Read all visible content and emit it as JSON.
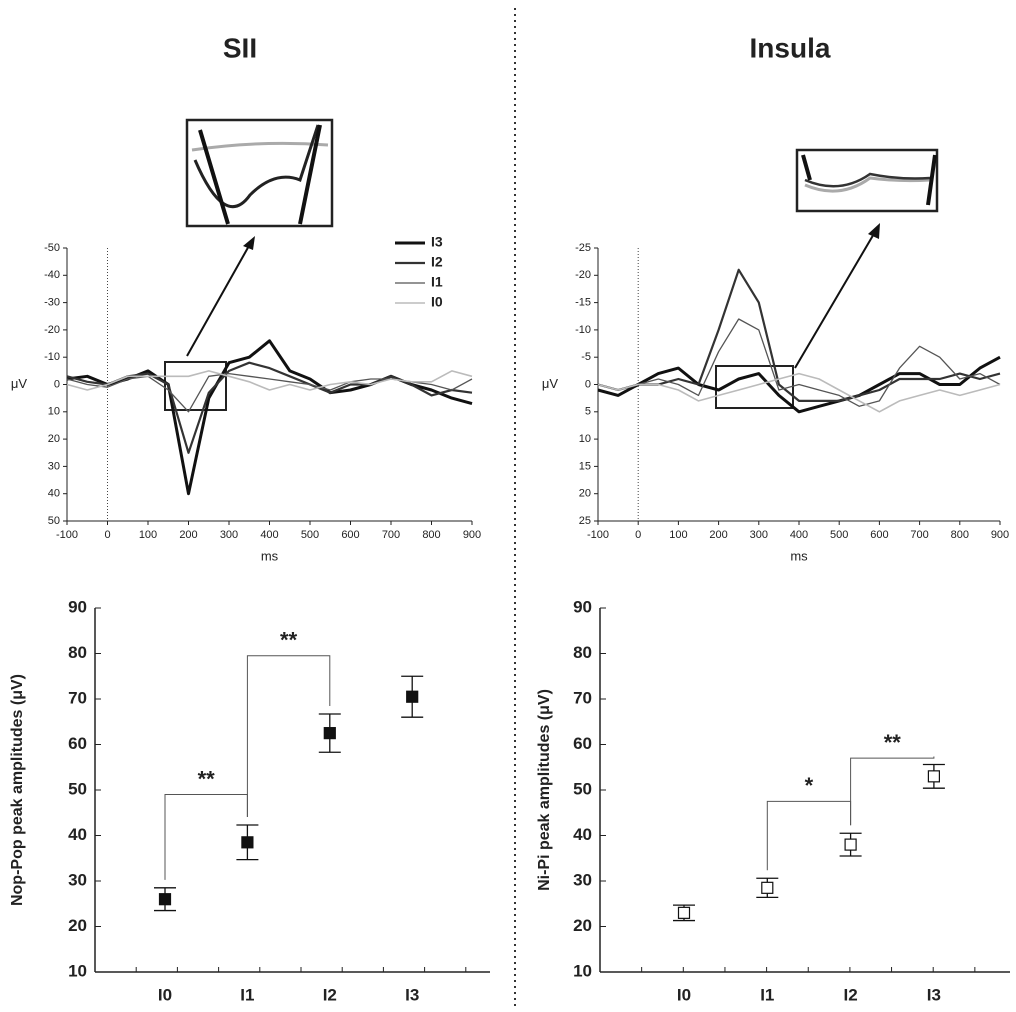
{
  "chart_data": [
    {
      "type": "line",
      "title": "SII",
      "xlabel": "ms",
      "ylabel": "μV",
      "x": [
        -100,
        -50,
        0,
        50,
        100,
        150,
        200,
        250,
        300,
        350,
        400,
        450,
        500,
        550,
        600,
        650,
        700,
        750,
        800,
        850,
        900
      ],
      "xlim": [
        -100,
        900
      ],
      "xticks": [
        -100,
        0,
        100,
        200,
        300,
        400,
        500,
        600,
        700,
        800,
        900
      ],
      "ylim": [
        -50,
        50
      ],
      "yticks": [
        -50,
        -40,
        -30,
        -20,
        -10,
        0,
        10,
        20,
        30,
        40,
        50
      ],
      "y_inverted": true,
      "legend": "top-right",
      "series": [
        {
          "name": "I3",
          "color": "#111111",
          "line_width": 3,
          "values": [
            -2,
            -3,
            0,
            -2,
            -5,
            0,
            40,
            5,
            -8,
            -10,
            -16,
            -5,
            -2,
            3,
            2,
            0,
            -3,
            0,
            2,
            5,
            7
          ]
        },
        {
          "name": "I2",
          "color": "#333333",
          "line_width": 2.2,
          "values": [
            -3,
            -1,
            0,
            -3,
            -4,
            0,
            25,
            3,
            -5,
            -8,
            -6,
            -3,
            0,
            3,
            0,
            0,
            -3,
            0,
            4,
            2,
            3
          ]
        },
        {
          "name": "I1",
          "color": "#555555",
          "line_width": 1.3,
          "values": [
            -2,
            0,
            1,
            -2,
            -3,
            2,
            10,
            -3,
            -4,
            -3,
            -2,
            -1,
            0,
            2,
            -1,
            -2,
            -2,
            -1,
            0,
            2,
            -2
          ]
        },
        {
          "name": "I0",
          "color": "#bbbbbb",
          "line_width": 1.6,
          "values": [
            0,
            2,
            0,
            -3,
            -3,
            -3,
            -3,
            -5,
            -3,
            -1,
            2,
            0,
            2,
            0,
            -1,
            0,
            -2,
            -1,
            -1,
            -5,
            -3
          ]
        }
      ]
    },
    {
      "type": "line",
      "title": "Insula",
      "xlabel": "ms",
      "ylabel": "μV",
      "x": [
        -100,
        -50,
        0,
        50,
        100,
        150,
        200,
        250,
        300,
        350,
        400,
        450,
        500,
        550,
        600,
        650,
        700,
        750,
        800,
        850,
        900
      ],
      "xlim": [
        -100,
        900
      ],
      "xticks": [
        -100,
        0,
        100,
        200,
        300,
        400,
        500,
        600,
        700,
        800,
        900
      ],
      "ylim": [
        -25,
        25
      ],
      "yticks": [
        -25,
        -20,
        -15,
        -10,
        -5,
        0,
        5,
        10,
        15,
        20,
        25
      ],
      "y_inverted": true,
      "series": [
        {
          "name": "I3",
          "color": "#111111",
          "line_width": 3,
          "values": [
            1,
            2,
            0,
            -2,
            -3,
            0,
            1,
            -1,
            -2,
            2,
            5,
            4,
            3,
            2,
            0,
            -2,
            -2,
            0,
            0,
            -3,
            -5
          ]
        },
        {
          "name": "I2",
          "color": "#333333",
          "line_width": 2.2,
          "values": [
            0,
            1,
            0,
            0,
            -1,
            0,
            -10,
            -21,
            -15,
            0,
            3,
            3,
            3,
            2,
            1,
            -1,
            -1,
            -1,
            -2,
            -1,
            -2
          ]
        },
        {
          "name": "I1",
          "color": "#555555",
          "line_width": 1.3,
          "values": [
            0,
            1,
            0,
            -1,
            0,
            2,
            -6,
            -12,
            -10,
            1,
            0,
            1,
            2,
            4,
            3,
            -3,
            -7,
            -5,
            -1,
            -2,
            0
          ]
        },
        {
          "name": "I0",
          "color": "#bbbbbb",
          "line_width": 1.6,
          "values": [
            0,
            1,
            0,
            0,
            1,
            3,
            2,
            1,
            0,
            -1,
            -2,
            -1,
            1,
            3,
            5,
            3,
            2,
            1,
            2,
            1,
            0
          ]
        }
      ]
    },
    {
      "type": "errorbar",
      "ylabel": "Nop-Pop peak amplitudes (μV)",
      "categories": [
        "I0",
        "I1",
        "I2",
        "I3"
      ],
      "values": [
        26,
        38.5,
        62.5,
        70.5
      ],
      "errors": [
        2.5,
        3.8,
        4.2,
        4.5
      ],
      "color": "#111111",
      "marker_filled": true,
      "ylim": [
        10,
        90
      ],
      "yticks": [
        10,
        20,
        30,
        40,
        50,
        60,
        70,
        80,
        90
      ],
      "annotations": [
        {
          "label": "**",
          "categories": [
            "I0",
            "I1"
          ],
          "y": 49
        },
        {
          "label": "**",
          "categories": [
            "I1",
            "I2"
          ],
          "y": 79.5
        }
      ]
    },
    {
      "type": "errorbar",
      "ylabel": "Ni-Pi peak amplitudes (μV)",
      "categories": [
        "I0",
        "I1",
        "I2",
        "I3"
      ],
      "values": [
        23,
        28.5,
        38,
        53
      ],
      "errors": [
        1.7,
        2.1,
        2.5,
        2.6
      ],
      "color": "#111111",
      "marker_filled": false,
      "ylim": [
        10,
        90
      ],
      "yticks": [
        10,
        20,
        30,
        40,
        50,
        60,
        70,
        80,
        90
      ],
      "annotations": [
        {
          "label": "*",
          "categories": [
            "I1",
            "I2"
          ],
          "y": 47.5
        },
        {
          "label": "**",
          "categories": [
            "I2",
            "I3"
          ],
          "y": 57
        }
      ]
    }
  ]
}
